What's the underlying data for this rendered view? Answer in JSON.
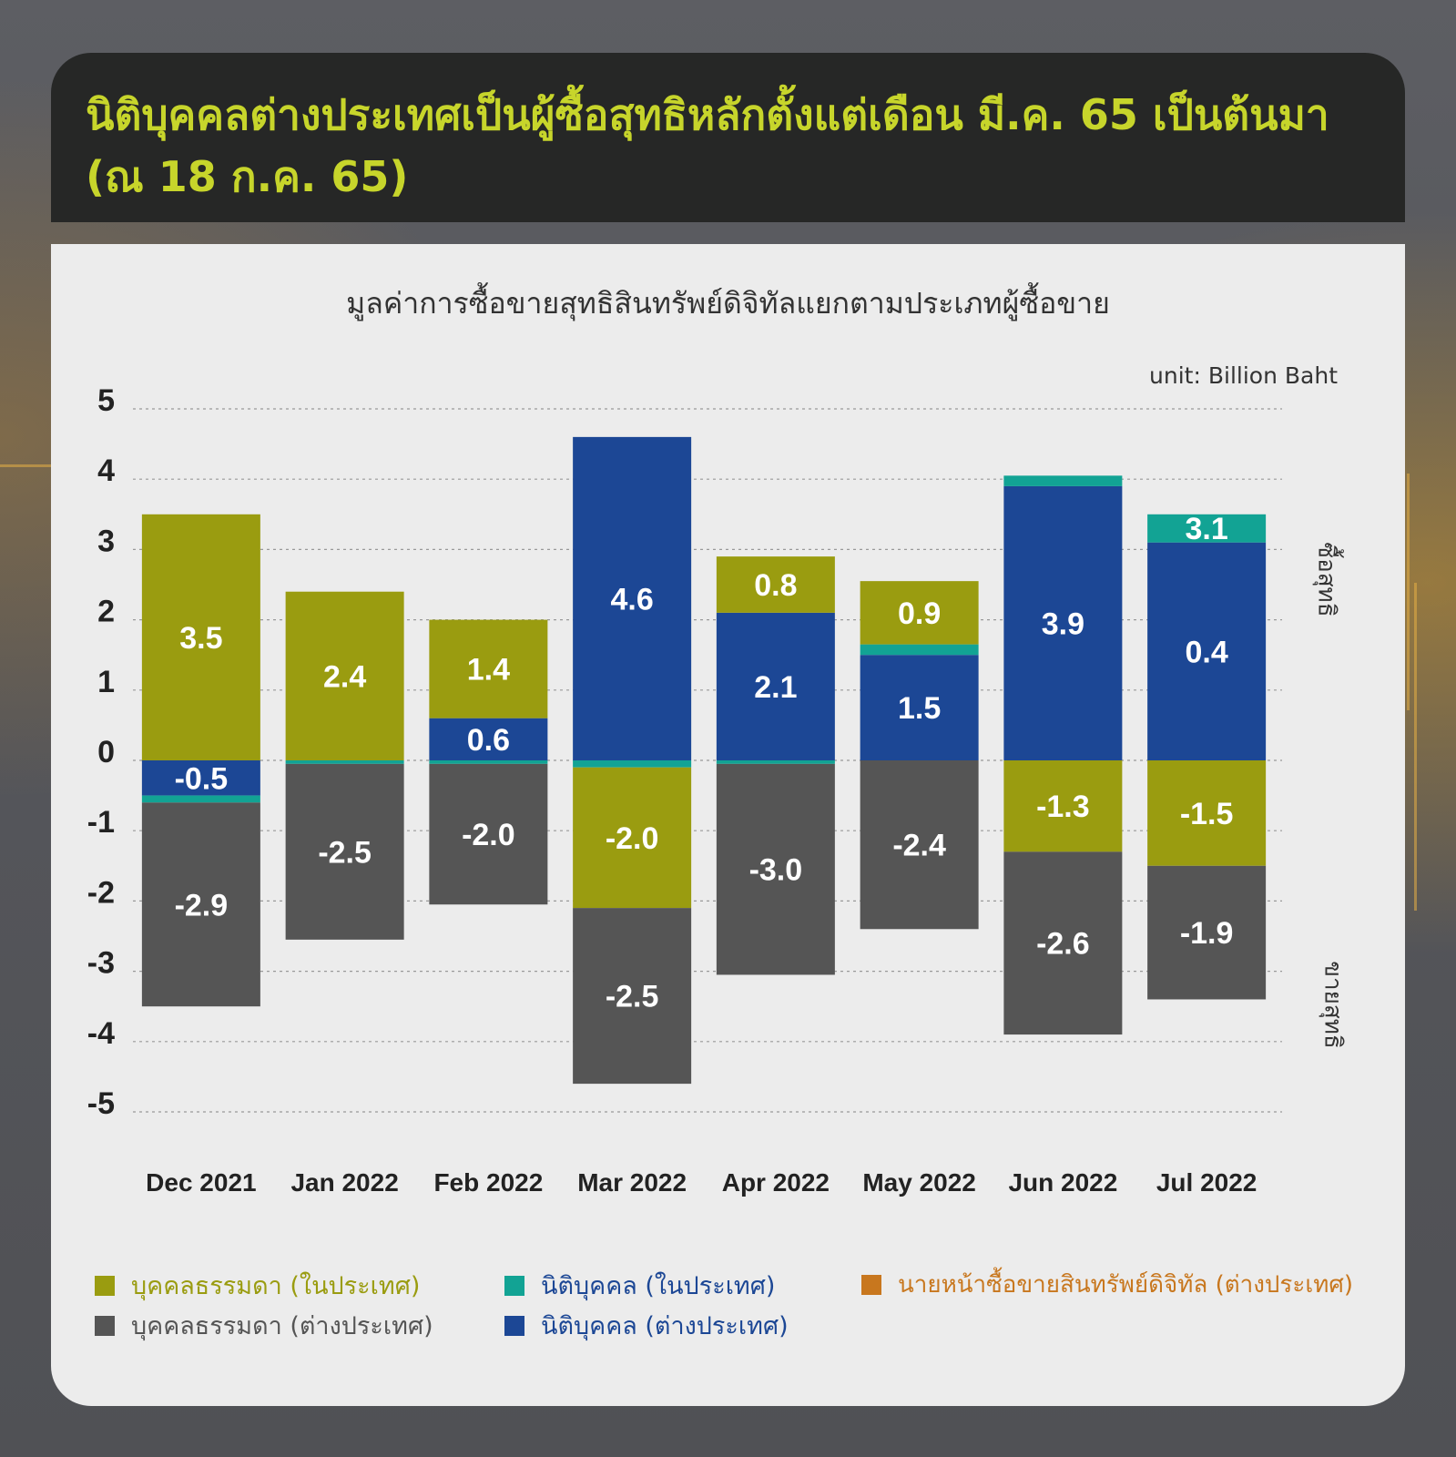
{
  "header": {
    "title": "นิติบุคคลต่างประเทศเป็นผู้ซื้อสุทธิหลักตั้งแต่เดือน มี.ค. 65 เป็นต้นมา\n(ณ 18 ก.ค. 65)"
  },
  "colors": {
    "header_bg": "#262726",
    "title_text": "#c7d52b",
    "retail_domestic": "#9a9c10",
    "retail_foreign": "#555555",
    "juristic_domestic": "#12a394",
    "juristic_foreign": "#1c4795",
    "broker_foreign": "#c8771e"
  },
  "side_labels": {
    "top": "ซื้อสุทธิ",
    "bottom": "ขายสุทธิ"
  },
  "chart_data": {
    "type": "bar",
    "stacked": true,
    "title": "มูลค่าการซื้อขายสุทธิสินทรัพย์ดิจิทัลแยกตามประเภทผู้ซื้อขาย",
    "unit": "unit: Billion Baht",
    "ylim": [
      -5,
      5
    ],
    "yticks": [
      "5",
      "4",
      "3",
      "2",
      "1",
      "0",
      "-1",
      "-2",
      "-3",
      "-4",
      "-5"
    ],
    "grid": true,
    "legend_position": "bottom",
    "categories": [
      "Dec 2021",
      "Jan 2022",
      "Feb 2022",
      "Mar 2022",
      "Apr 2022",
      "May 2022",
      "Jun 2022",
      "Jul 2022"
    ],
    "series": [
      {
        "name": "บุคคลธรรมดา (ในประเทศ)",
        "color": "#9a9c10",
        "values": [
          3.5,
          2.4,
          1.4,
          -2.0,
          0.8,
          0.9,
          -1.3,
          -1.5
        ]
      },
      {
        "name": "นิติบุคคล (ในประเทศ)",
        "color": "#12a394",
        "values": [
          -0.1,
          -0.05,
          -0.05,
          -0.1,
          -0.05,
          0.15,
          0.15,
          0.4
        ]
      },
      {
        "name": "นายหน้าซื้อขายสินทรัพย์ดิจิทัล (ต่างประเทศ)",
        "color": "#c8771e",
        "values": [
          0,
          0,
          0,
          0,
          0,
          0,
          0,
          0
        ]
      },
      {
        "name": "บุคคลธรรมดา (ต่างประเทศ)",
        "color": "#555555",
        "values": [
          -2.9,
          -2.5,
          -2.0,
          -2.5,
          -3.0,
          -2.4,
          -2.6,
          -1.9
        ]
      },
      {
        "name": "นิติบุคคล (ต่างประเทศ)",
        "color": "#1c4795",
        "values": [
          -0.5,
          0,
          0.6,
          4.6,
          2.1,
          1.5,
          3.9,
          3.1
        ]
      }
    ],
    "data_labels": [
      [
        "3.5",
        "-0.5",
        "-2.9"
      ],
      [
        "2.4",
        "-2.5"
      ],
      [
        "1.4",
        "0.6",
        "-2.0"
      ],
      [
        "4.6",
        "-2.0",
        "-2.5"
      ],
      [
        "0.8",
        "2.1",
        "-3.0"
      ],
      [
        "0.9",
        "1.5",
        "-2.4"
      ],
      [
        "3.9",
        "-1.3",
        "-2.6"
      ],
      [
        "3.1",
        "0.4",
        "-1.5",
        "-1.9"
      ]
    ]
  },
  "legend": [
    {
      "label": "บุคคลธรรมดา (ในประเทศ)",
      "color": "#9a9c10"
    },
    {
      "label": "นิติบุคคล (ในประเทศ)",
      "color": "#12a394"
    },
    {
      "label": "นายหน้าซื้อขายสินทรัพย์ดิจิทัล (ต่างประเทศ)",
      "color": "#c8771e"
    },
    {
      "label": "บุคคลธรรมดา (ต่างประเทศ)",
      "color": "#555555"
    },
    {
      "label": "นิติบุคคล (ต่างประเทศ)",
      "color": "#1c4795"
    }
  ]
}
